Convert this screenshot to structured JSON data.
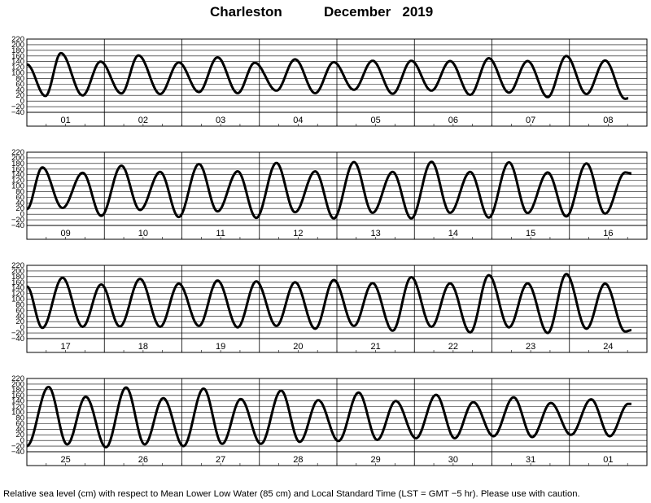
{
  "chart_data": {
    "type": "line",
    "station": "Charleston",
    "period": "December   2019",
    "caption": "Relative sea level (cm) with respect to Mean Lower Low Water (85 cm) and Local Standard Time (LST = GMT −5 hr). Please use with caution.",
    "y_ticks": [
      "220",
      "200",
      "180",
      "160",
      "140",
      "120",
      "100",
      "80",
      "60",
      "40",
      "20",
      "0",
      "−20",
      "−40"
    ],
    "ylim": [
      -40,
      220
    ],
    "grid": true,
    "series_color": "#000000",
    "panels": [
      {
        "days": [
          "01",
          "02",
          "03",
          "04",
          "05",
          "06",
          "07",
          "08"
        ],
        "extrema": [
          [
            0.0,
            130
          ],
          [
            0.24,
            18
          ],
          [
            0.44,
            170
          ],
          [
            0.72,
            20
          ],
          [
            0.95,
            140
          ],
          [
            1.22,
            27
          ],
          [
            1.44,
            162
          ],
          [
            1.72,
            25
          ],
          [
            1.96,
            137
          ],
          [
            2.22,
            32
          ],
          [
            2.46,
            155
          ],
          [
            2.72,
            28
          ],
          [
            2.94,
            136
          ],
          [
            3.22,
            37
          ],
          [
            3.46,
            148
          ],
          [
            3.72,
            28
          ],
          [
            3.96,
            138
          ],
          [
            4.22,
            40
          ],
          [
            4.46,
            143
          ],
          [
            4.72,
            26
          ],
          [
            4.96,
            143
          ],
          [
            5.22,
            37
          ],
          [
            5.46,
            142
          ],
          [
            5.72,
            22
          ],
          [
            5.96,
            152
          ],
          [
            6.22,
            30
          ],
          [
            6.46,
            142
          ],
          [
            6.72,
            14
          ],
          [
            6.96,
            160
          ],
          [
            7.22,
            25
          ],
          [
            7.46,
            144
          ],
          [
            7.72,
            8
          ],
          [
            7.76,
            10
          ]
        ]
      },
      {
        "days": [
          "09",
          "10",
          "11",
          "12",
          "13",
          "14",
          "15",
          "16"
        ],
        "extrema": [
          [
            0.0,
            18
          ],
          [
            0.2,
            166
          ],
          [
            0.46,
            22
          ],
          [
            0.72,
            147
          ],
          [
            0.96,
            -6
          ],
          [
            1.22,
            172
          ],
          [
            1.46,
            15
          ],
          [
            1.72,
            150
          ],
          [
            1.96,
            -10
          ],
          [
            2.22,
            178
          ],
          [
            2.46,
            10
          ],
          [
            2.72,
            152
          ],
          [
            2.96,
            -13
          ],
          [
            3.22,
            182
          ],
          [
            3.46,
            7
          ],
          [
            3.72,
            152
          ],
          [
            3.96,
            -15
          ],
          [
            4.22,
            185
          ],
          [
            4.46,
            5
          ],
          [
            4.72,
            150
          ],
          [
            4.96,
            -15
          ],
          [
            5.22,
            186
          ],
          [
            5.46,
            5
          ],
          [
            5.72,
            150
          ],
          [
            5.96,
            -12
          ],
          [
            6.22,
            184
          ],
          [
            6.46,
            4
          ],
          [
            6.72,
            148
          ],
          [
            6.96,
            -8
          ],
          [
            7.22,
            180
          ],
          [
            7.46,
            2
          ],
          [
            7.72,
            148
          ],
          [
            7.8,
            145
          ]
        ]
      },
      {
        "days": [
          "17",
          "18",
          "19",
          "20",
          "21",
          "22",
          "23",
          "24"
        ],
        "extrema": [
          [
            0.0,
            145
          ],
          [
            0.2,
            -2
          ],
          [
            0.46,
            176
          ],
          [
            0.72,
            2
          ],
          [
            0.96,
            152
          ],
          [
            1.2,
            3
          ],
          [
            1.46,
            172
          ],
          [
            1.72,
            2
          ],
          [
            1.96,
            155
          ],
          [
            2.22,
            5
          ],
          [
            2.46,
            166
          ],
          [
            2.72,
            0
          ],
          [
            2.96,
            163
          ],
          [
            3.22,
            5
          ],
          [
            3.46,
            160
          ],
          [
            3.72,
            -5
          ],
          [
            3.96,
            168
          ],
          [
            4.22,
            5
          ],
          [
            4.46,
            157
          ],
          [
            4.72,
            -12
          ],
          [
            4.96,
            178
          ],
          [
            5.22,
            2
          ],
          [
            5.46,
            156
          ],
          [
            5.72,
            -18
          ],
          [
            5.96,
            185
          ],
          [
            6.22,
            0
          ],
          [
            6.46,
            156
          ],
          [
            6.72,
            -20
          ],
          [
            6.96,
            189
          ],
          [
            7.22,
            -5
          ],
          [
            7.46,
            155
          ],
          [
            7.72,
            -15
          ],
          [
            7.8,
            -10
          ]
        ]
      },
      {
        "days": [
          "25",
          "26",
          "27",
          "28",
          "29",
          "30",
          "31",
          "01"
        ],
        "extrema": [
          [
            0.0,
            -20
          ],
          [
            0.28,
            190
          ],
          [
            0.52,
            -14
          ],
          [
            0.76,
            155
          ],
          [
            1.02,
            -24
          ],
          [
            1.28,
            188
          ],
          [
            1.52,
            -14
          ],
          [
            1.76,
            150
          ],
          [
            2.02,
            -20
          ],
          [
            2.28,
            184
          ],
          [
            2.52,
            -12
          ],
          [
            2.76,
            147
          ],
          [
            3.02,
            -12
          ],
          [
            3.28,
            177
          ],
          [
            3.52,
            -5
          ],
          [
            3.76,
            143
          ],
          [
            4.02,
            -2
          ],
          [
            4.28,
            170
          ],
          [
            4.52,
            2
          ],
          [
            4.76,
            140
          ],
          [
            5.02,
            8
          ],
          [
            5.28,
            162
          ],
          [
            5.52,
            8
          ],
          [
            5.76,
            136
          ],
          [
            6.02,
            15
          ],
          [
            6.28,
            153
          ],
          [
            6.52,
            12
          ],
          [
            6.76,
            133
          ],
          [
            7.02,
            20
          ],
          [
            7.28,
            146
          ],
          [
            7.52,
            15
          ],
          [
            7.76,
            130
          ],
          [
            7.8,
            130
          ]
        ]
      }
    ]
  }
}
